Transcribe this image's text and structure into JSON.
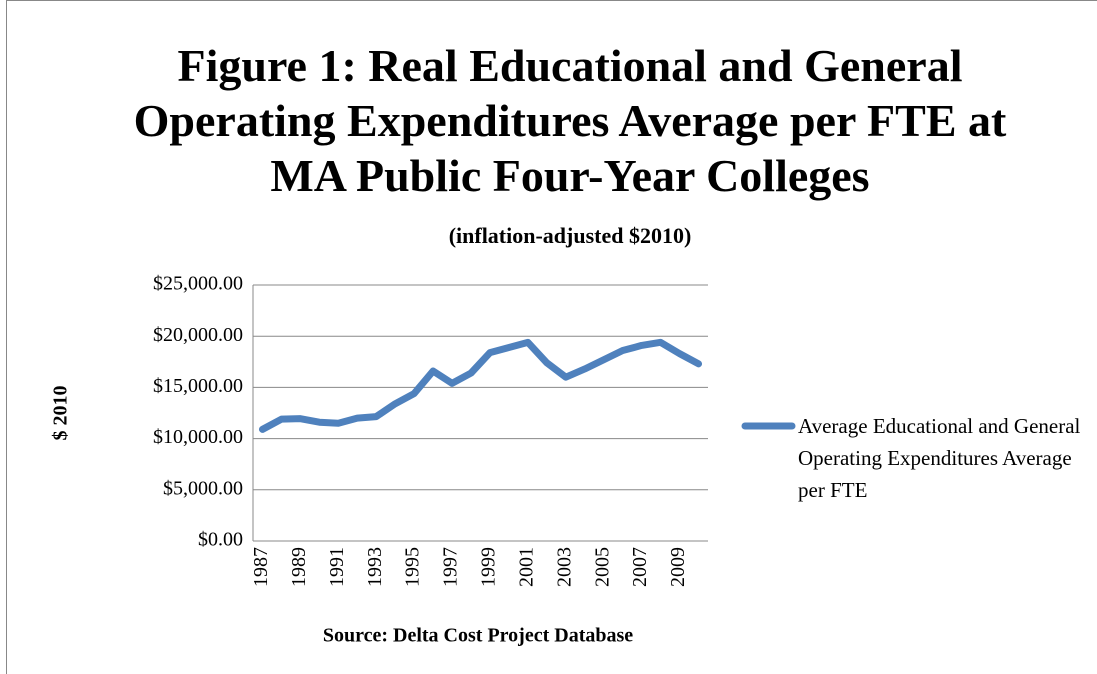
{
  "chart_data": {
    "type": "line",
    "title": "Figure 1: Real Educational and General Operating Expenditures Average per FTE at MA Public Four-Year Colleges",
    "subtitle": "(inflation-adjusted $2010)",
    "y_label": "$ 2010",
    "x_label": "Source: Delta Cost Project Database",
    "categories": [
      "1987",
      null,
      "1989",
      null,
      "1991",
      null,
      "1993",
      null,
      "1995",
      null,
      "1997",
      null,
      "1999",
      null,
      "2001",
      null,
      "2003",
      null,
      "2005",
      null,
      "2007",
      null,
      "2009",
      null
    ],
    "series": [
      {
        "name": "Average Educational and General Operating Expenditures Average per FTE",
        "color": "#4f81bd",
        "values": [
          10900,
          11900,
          11950,
          11600,
          11500,
          12000,
          12150,
          13400,
          14400,
          16600,
          15400,
          16400,
          18400,
          18900,
          19400,
          17400,
          16000,
          16800,
          17700,
          18600,
          19100,
          19400,
          18300,
          17300
        ]
      }
    ],
    "ylim": [
      0,
      25000
    ],
    "yticks": [
      {
        "value": 0,
        "label": "$0.00"
      },
      {
        "value": 5000,
        "label": "$5,000.00"
      },
      {
        "value": 10000,
        "label": "$10,000.00"
      },
      {
        "value": 15000,
        "label": "$15,000.00"
      },
      {
        "value": 20000,
        "label": "$20,000.00"
      },
      {
        "value": 25000,
        "label": "$25,000.00"
      }
    ],
    "grid": true,
    "legend": "right"
  }
}
